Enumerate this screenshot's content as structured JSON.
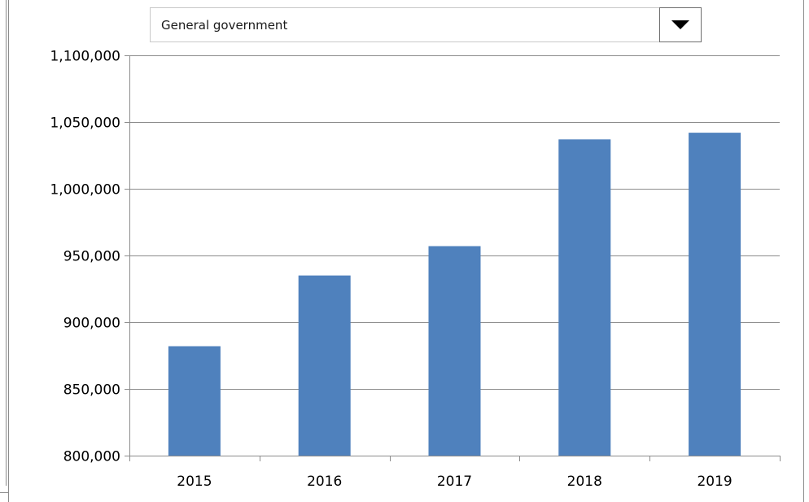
{
  "dropdown": {
    "selected": "General government",
    "icon": "triangle-down-icon"
  },
  "chart_data": {
    "type": "bar",
    "categories": [
      "2015",
      "2016",
      "2017",
      "2018",
      "2019"
    ],
    "values": [
      882000,
      935000,
      957000,
      1037000,
      1042000
    ],
    "ylim": [
      800000,
      1100000
    ],
    "yticks": [
      800000,
      850000,
      900000,
      950000,
      1000000,
      1050000,
      1100000
    ],
    "ytick_labels": [
      "800,000",
      "850,000",
      "900,000",
      "950,000",
      "1,000,000",
      "1,050,000",
      "1,100,000"
    ],
    "grid": true,
    "legend": "none",
    "colors": {
      "bar": "#4f81bd",
      "grid": "#8c8c8c",
      "axis": "#8c8c8c"
    }
  }
}
